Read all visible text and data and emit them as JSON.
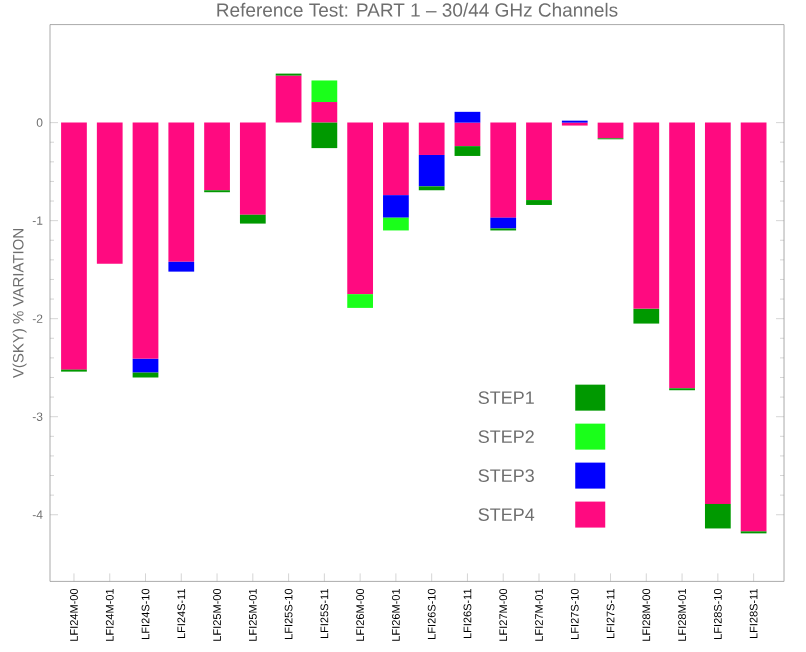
{
  "chart_data": {
    "type": "bar",
    "stacked": true,
    "title": "Reference Test: PART 1 – 30/44 GHz Channels",
    "ylabel": "V(SKY) % VARIATION",
    "categories": [
      "LFI24M-00",
      "LFI24M-01",
      "LFI24S-10",
      "LFI24S-11",
      "LFI25M-00",
      "LFI25M-01",
      "LFI25S-10",
      "LFI25S-11",
      "LFI26M-00",
      "LFI26M-01",
      "LFI26S-10",
      "LFI26S-11",
      "LFI27M-00",
      "LFI27M-01",
      "LFI27S-10",
      "LFI27S-11",
      "LFI28M-00",
      "LFI28M-01",
      "LFI28S-10",
      "LFI28S-11"
    ],
    "series": [
      {
        "name": "STEP4",
        "color": "#ff0a80",
        "values": [
          -2.52,
          -1.44,
          -2.41,
          -1.42,
          -0.69,
          -0.94,
          0.48,
          0.21,
          -1.75,
          -0.74,
          -0.33,
          -0.24,
          -0.97,
          -0.79,
          -0.03,
          -0.16,
          -1.9,
          -2.71,
          -3.89,
          -4.17
        ]
      },
      {
        "name": "STEP3",
        "color": "#0000ff",
        "values": [
          null,
          null,
          -0.14,
          -0.1,
          null,
          null,
          null,
          null,
          null,
          -0.23,
          -0.32,
          0.11,
          -0.11,
          null,
          0.02,
          null,
          null,
          null,
          null,
          null
        ]
      },
      {
        "name": "STEP2",
        "color": "#1aff1a",
        "values": [
          null,
          null,
          null,
          null,
          null,
          null,
          null,
          0.22,
          -0.14,
          -0.13,
          null,
          null,
          null,
          null,
          null,
          null,
          null,
          null,
          null,
          null
        ]
      },
      {
        "name": "STEP1",
        "color": "#009900",
        "values": [
          -0.02,
          null,
          -0.05,
          null,
          -0.02,
          -0.09,
          0.02,
          -0.26,
          null,
          null,
          -0.04,
          -0.1,
          -0.02,
          -0.05,
          null,
          -0.01,
          -0.15,
          -0.02,
          -0.25,
          -0.02
        ]
      }
    ],
    "ylim": [
      -4.68,
      1
    ],
    "yticks": [
      -4,
      -3,
      -2,
      -1,
      0
    ],
    "legend": "bottom right"
  }
}
